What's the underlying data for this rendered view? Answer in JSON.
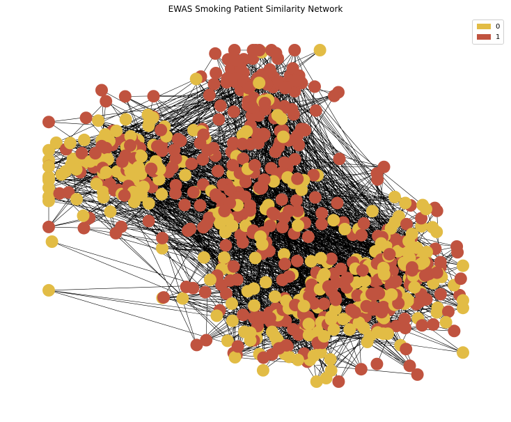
{
  "title": "EWAS Smoking Patient Similarity Network",
  "legend": [
    {
      "label": "0",
      "color": "#E2BC45"
    },
    {
      "label": "1",
      "color": "#C0533F"
    }
  ],
  "colors": {
    "edge": "#000000",
    "class_0": "#E2BC45",
    "class_1": "#C0533F",
    "background": "#ffffff"
  }
}
